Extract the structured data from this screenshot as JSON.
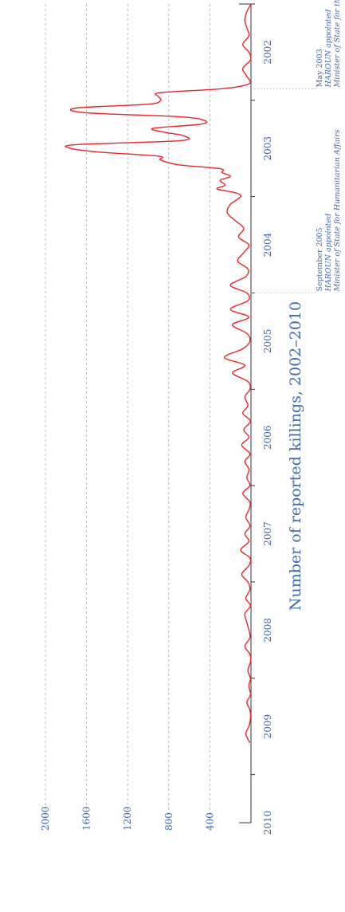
{
  "colors": {
    "text": "#3f68b0",
    "line": "#e8242b",
    "grid": "#aaaaaa",
    "axis": "#333333"
  },
  "chart_data": {
    "type": "line",
    "title": "Number of reported killings, 2002–2010",
    "xlabel": "",
    "ylabel": "",
    "orientation": "rotated 90° clockwise (time runs top to bottom, counts increase to the left)",
    "xlim": [
      2002,
      2010.5
    ],
    "ylim": [
      0,
      2000
    ],
    "yticks": [
      0,
      400,
      800,
      1200,
      1600,
      2000
    ],
    "ytick_labels": [
      "",
      "400",
      "800",
      "1200",
      "1600",
      "2000"
    ],
    "xticks": [
      2002,
      2003,
      2004,
      2005,
      2006,
      2007,
      2008,
      2009,
      2010
    ],
    "xtick_labels": [
      "2002",
      "2003",
      "2004",
      "2005",
      "2006",
      "2007",
      "2008",
      "2009",
      "2010"
    ],
    "grid": true,
    "series": [
      {
        "color": "#e8242b",
        "x": [
          2002.0,
          2002.08,
          2002.17,
          2002.25,
          2002.33,
          2002.42,
          2002.5,
          2002.58,
          2002.67,
          2002.75,
          2002.83,
          2002.88,
          2002.92,
          2002.96,
          2003.0,
          2003.04,
          2003.08,
          2003.13,
          2003.17,
          2003.21,
          2003.25,
          2003.29,
          2003.33,
          2003.37,
          2003.42,
          2003.46,
          2003.5,
          2003.54,
          2003.58,
          2003.62,
          2003.67,
          2003.71,
          2003.75,
          2003.79,
          2003.83,
          2003.88,
          2003.92,
          2003.96,
          2004.0,
          2004.08,
          2004.17,
          2004.25,
          2004.33,
          2004.42,
          2004.5,
          2004.58,
          2004.67,
          2004.75,
          2004.83,
          2004.92,
          2005.0,
          2005.08,
          2005.17,
          2005.25,
          2005.33,
          2005.42,
          2005.5,
          2005.58,
          2005.67,
          2005.75,
          2005.83,
          2005.92,
          2006.0,
          2006.08,
          2006.17,
          2006.25,
          2006.33,
          2006.42,
          2006.5,
          2006.58,
          2006.67,
          2006.75,
          2006.83,
          2006.92,
          2007.0,
          2007.08,
          2007.17,
          2007.25,
          2007.33,
          2007.42,
          2007.5,
          2007.58,
          2007.67,
          2007.75,
          2007.83,
          2007.92,
          2008.0,
          2008.08,
          2008.17,
          2008.25,
          2008.33,
          2008.42,
          2008.5,
          2008.58,
          2008.67,
          2008.75,
          2008.83,
          2008.92,
          2009.0,
          2009.08,
          2009.17,
          2009.25,
          2009.33,
          2009.42,
          2009.5,
          2009.58,
          2009.67
        ],
        "y": [
          0,
          40,
          60,
          40,
          20,
          80,
          20,
          5,
          80,
          40,
          20,
          280,
          880,
          900,
          880,
          1000,
          1700,
          1600,
          700,
          450,
          500,
          950,
          850,
          650,
          700,
          1700,
          1750,
          1450,
          900,
          880,
          700,
          300,
          280,
          200,
          300,
          250,
          330,
          150,
          100,
          200,
          230,
          150,
          70,
          120,
          20,
          70,
          130,
          30,
          50,
          200,
          40,
          30,
          200,
          20,
          180,
          40,
          10,
          80,
          260,
          60,
          180,
          30,
          10,
          60,
          30,
          80,
          5,
          70,
          20,
          90,
          10,
          60,
          20,
          40,
          10,
          80,
          10,
          20,
          50,
          10,
          60,
          20,
          100,
          10,
          20,
          90,
          30,
          10,
          50,
          5,
          60,
          40,
          20,
          10,
          60,
          10,
          5,
          30,
          5,
          20,
          5,
          40,
          10,
          5,
          20,
          50,
          10
        ]
      }
    ],
    "annotations": [
      {
        "x": 2002.88,
        "lines": [
          "May 2003",
          "HAROUN appointed",
          "Minister of State for the Interior"
        ]
      },
      {
        "x": 2005.0,
        "lines": [
          "September 2005",
          "HAROUN appointed",
          "Minister of State for Humanitarian Affairs"
        ]
      }
    ]
  }
}
